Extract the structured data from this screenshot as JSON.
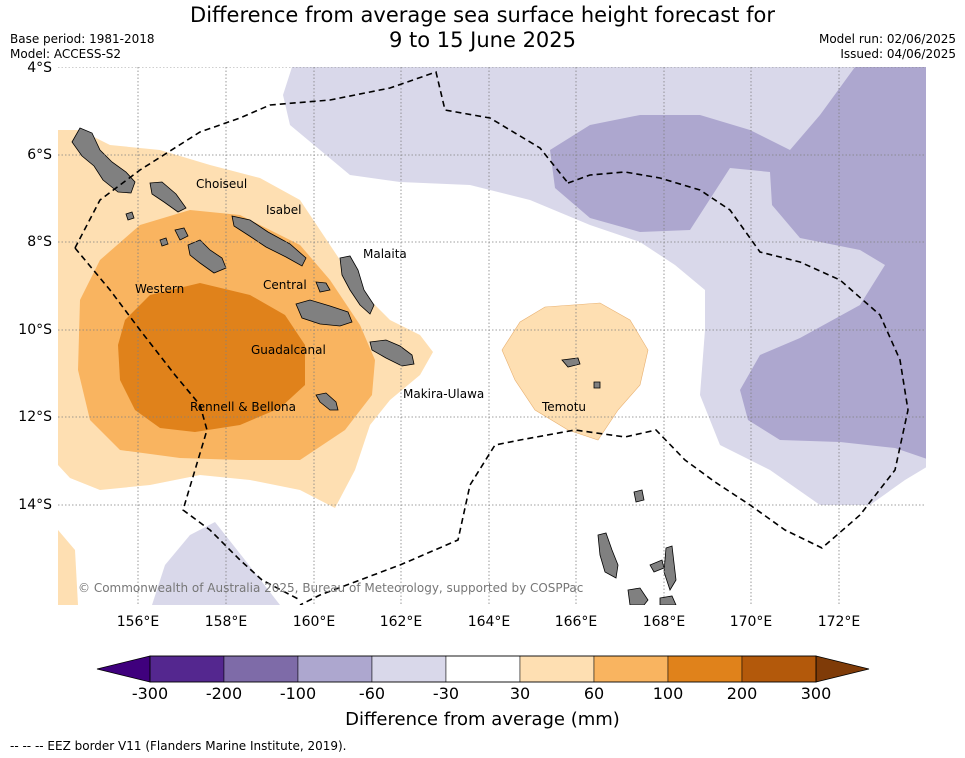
{
  "title_line1": "Difference from average sea surface height forecast for",
  "title_line2": "9 to 15 June 2025",
  "base_period": "Base period: 1981-2018",
  "model": "Model: ACCESS-S2",
  "model_run": "Model run: 02/06/2025",
  "issued": "Issued: 04/06/2025",
  "lat_ticks": [
    "4°S",
    "6°S",
    "8°S",
    "10°S",
    "12°S",
    "14°S"
  ],
  "lon_ticks": [
    "156°E",
    "158°E",
    "160°E",
    "162°E",
    "164°E",
    "166°E",
    "168°E",
    "170°E",
    "172°E"
  ],
  "regions": [
    "Choiseul",
    "Isabel",
    "Malaita",
    "Western",
    "Central",
    "Guadalcanal",
    "Makira-Ulawa",
    "Rennell & Bellona",
    "Temotu"
  ],
  "copyright": "© Commonwealth of Australia 2025, Bureau of Meteorology, supported by COSPPac",
  "colorbar": {
    "ticks": [
      "-300",
      "-200",
      "-100",
      "-60",
      "-30",
      "30",
      "60",
      "100",
      "200",
      "300"
    ],
    "colors": [
      "#54278f",
      "#7e6ba8",
      "#ada7cf",
      "#d9d8ea",
      "#ffffff",
      "#fedfb2",
      "#f9b460",
      "#e0821b",
      "#b3590b"
    ],
    "extend_low_color": "#3f007d",
    "extend_high_color": "#7f3b08",
    "title": "Difference from average (mm)"
  },
  "legend_text": "--  --  -- EEZ border V11 (Flanders Marine Institute, 2019).",
  "colors": {
    "land": "#808080",
    "grid": "#808080"
  }
}
